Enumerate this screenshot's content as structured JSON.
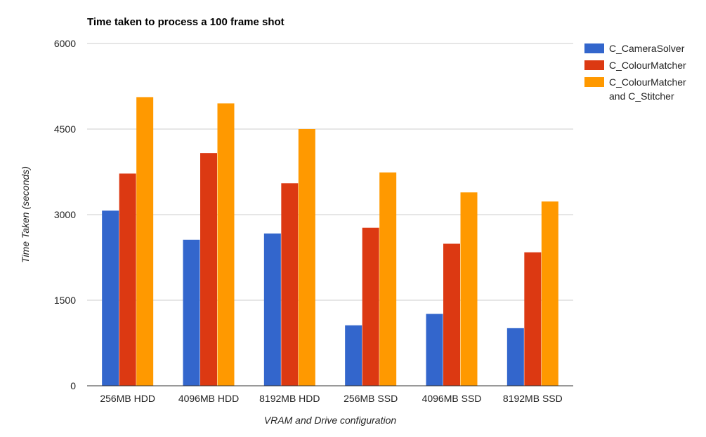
{
  "chart_data": {
    "type": "bar",
    "title": "Time taken to process a 100 frame shot",
    "xlabel": "VRAM and Drive configuration",
    "ylabel": "Time Taken (seconds)",
    "categories": [
      "256MB HDD",
      "4096MB HDD",
      "8192MB HDD",
      "256MB SSD",
      "4096MB SSD",
      "8192MB SSD"
    ],
    "series": [
      {
        "name": "C_CameraSolver",
        "color": "#3366cc",
        "values": [
          3070,
          2560,
          2670,
          1060,
          1260,
          1010
        ]
      },
      {
        "name": "C_ColourMatcher",
        "color": "#dc3912",
        "values": [
          3720,
          4080,
          3550,
          2770,
          2490,
          2340
        ]
      },
      {
        "name": "C_ColourMatcher and C_Stitcher",
        "legend_lines": [
          "C_ColourMatcher",
          "and C_Stitcher"
        ],
        "color": "#ff9900",
        "values": [
          5060,
          4950,
          4500,
          3740,
          3390,
          3230
        ]
      }
    ],
    "ylim": [
      0,
      6000
    ],
    "yticks": [
      0,
      1500,
      3000,
      4500,
      6000
    ],
    "grid": true,
    "legend_position": "right"
  }
}
